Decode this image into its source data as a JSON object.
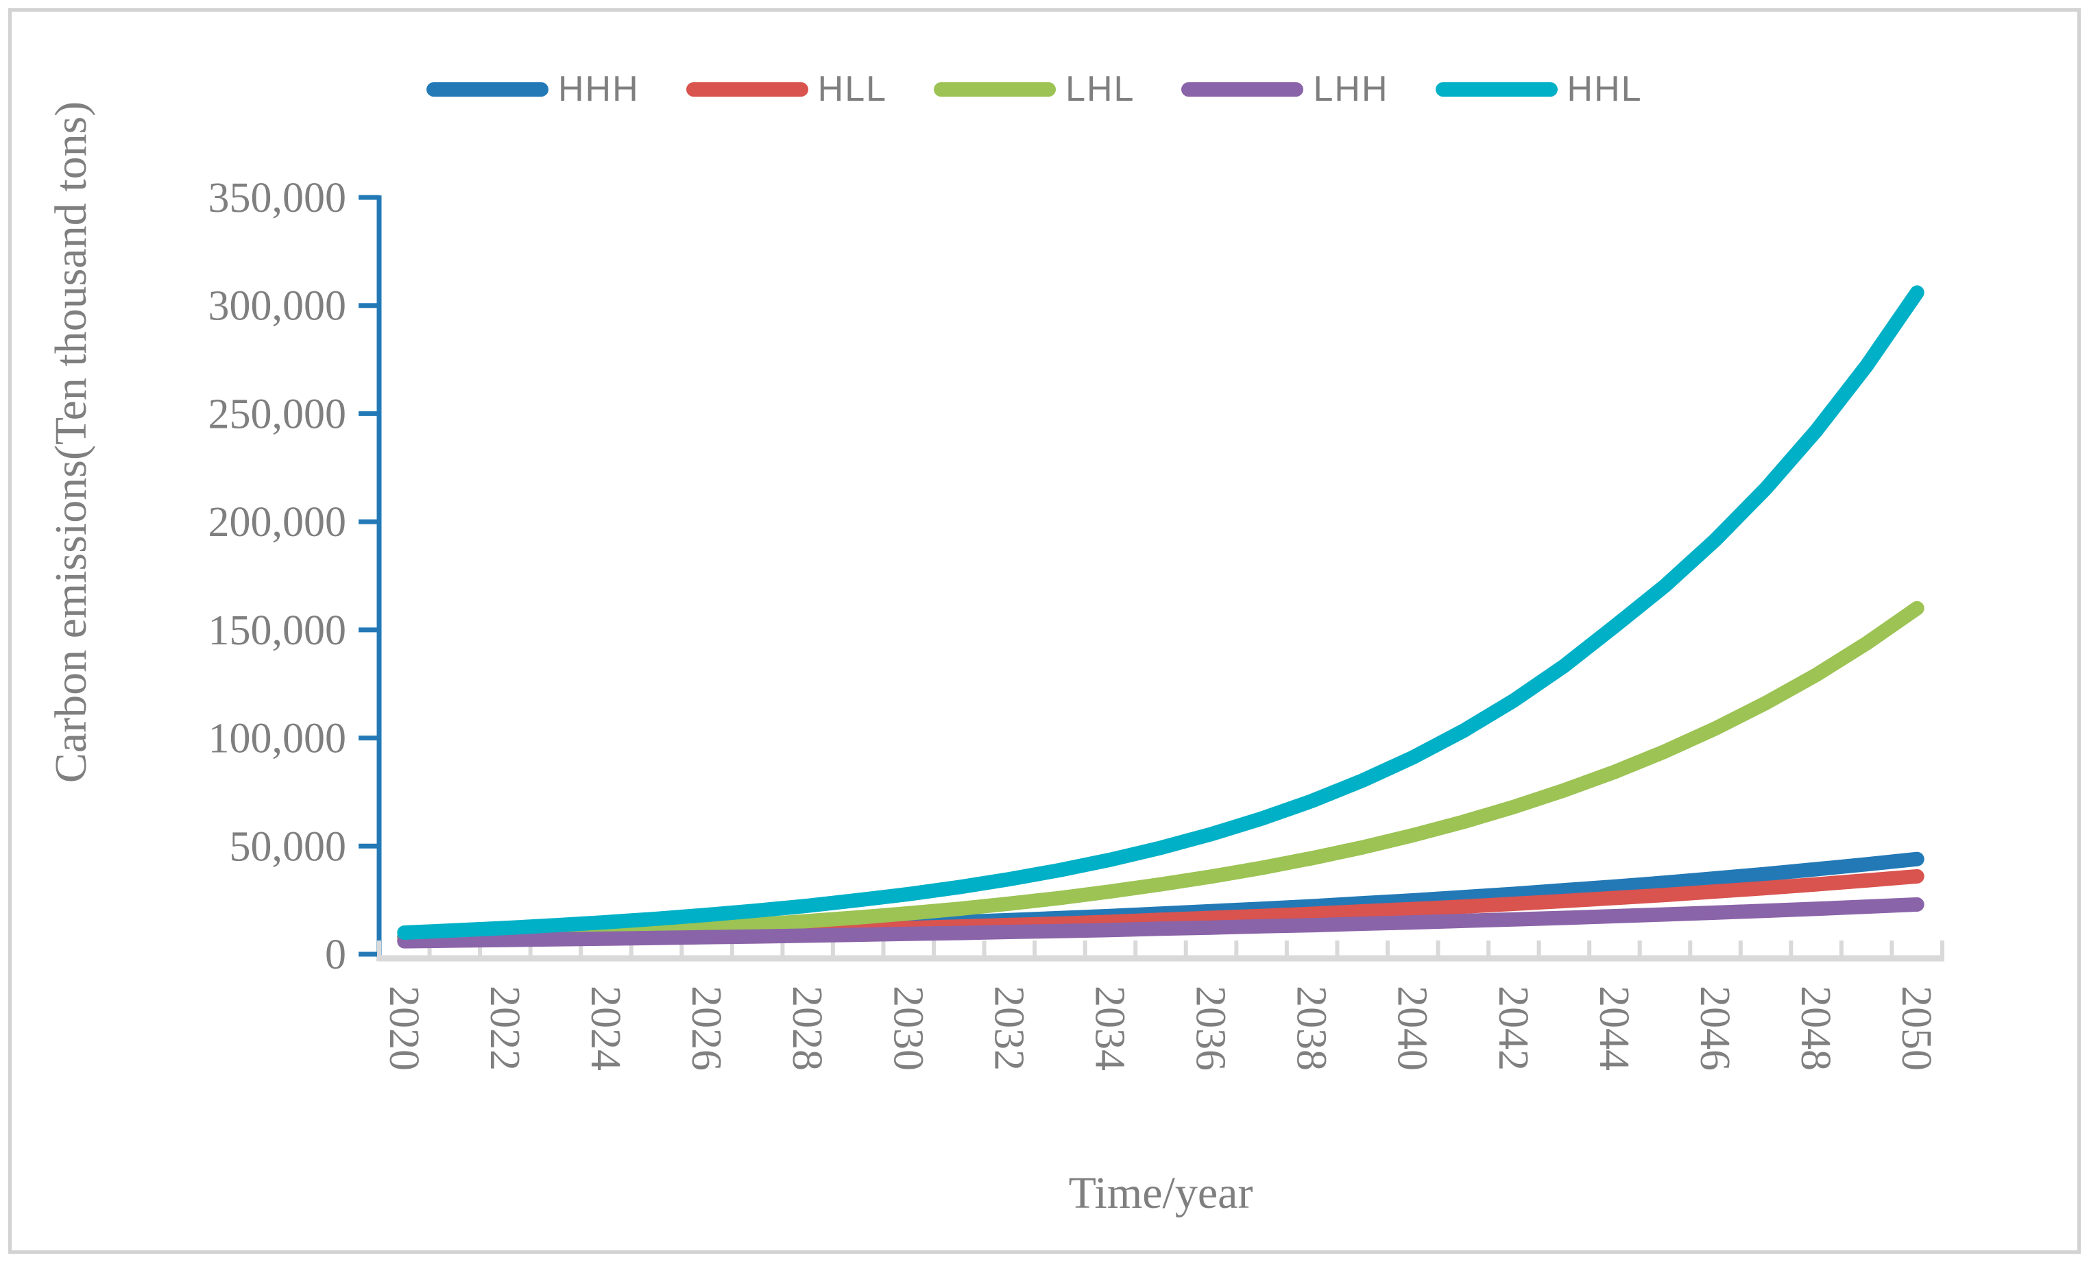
{
  "figure": {
    "background": "#FFFFFF",
    "border_color": "#D2D2D2"
  },
  "legend": {
    "position": "top",
    "text_color": "#7F7F7F",
    "items": [
      {
        "label": "HHH",
        "color": "#2379B6"
      },
      {
        "label": "HLL",
        "color": "#D9534F"
      },
      {
        "label": "LHL",
        "color": "#9CC353"
      },
      {
        "label": "LHH",
        "color": "#8A64A8"
      },
      {
        "label": "HHL",
        "color": "#00B0C6"
      }
    ]
  },
  "y_axis": {
    "title": "Carbon emissions(Ten thousand tons)",
    "tick_labels": [
      "0",
      "50,000",
      "100,000",
      "150,000",
      "200,000",
      "250,000",
      "300,000",
      "350,000"
    ],
    "min": 0,
    "max": 350000,
    "step": 50000,
    "axis_color": "#2379B6",
    "text_color": "#7F7F7F"
  },
  "x_axis": {
    "title": "Time/year",
    "tick_labels": [
      "2020",
      "2022",
      "2024",
      "2026",
      "2028",
      "2030",
      "2032",
      "2034",
      "2036",
      "2038",
      "2040",
      "2042",
      "2044",
      "2046",
      "2048",
      "2050"
    ],
    "line_color": "#D9D9D9",
    "text_color": "#7F7F7F"
  },
  "chart_data": {
    "type": "line",
    "title": "",
    "xlabel": "Time/year",
    "ylabel": "Carbon emissions(Ten thousand tons)",
    "ylim": [
      0,
      350000
    ],
    "grid": false,
    "legend_position": "top",
    "x": [
      2020,
      2021,
      2022,
      2023,
      2024,
      2025,
      2026,
      2027,
      2028,
      2029,
      2030,
      2031,
      2032,
      2033,
      2034,
      2035,
      2036,
      2037,
      2038,
      2039,
      2040,
      2041,
      2042,
      2043,
      2044,
      2045,
      2046,
      2047,
      2048,
      2049,
      2050
    ],
    "series": [
      {
        "name": "HHH",
        "color": "#2379B6",
        "values": [
          8000,
          8500,
          9000,
          9500,
          10000,
          10600,
          11300,
          11900,
          12600,
          13300,
          14100,
          14900,
          15800,
          16700,
          17700,
          18800,
          19900,
          21000,
          22200,
          23600,
          24900,
          26400,
          27900,
          29600,
          31300,
          33100,
          35100,
          37100,
          39300,
          41600,
          44000
        ]
      },
      {
        "name": "HLL",
        "color": "#D9534F",
        "values": [
          7000,
          7400,
          7800,
          8200,
          8700,
          9200,
          9700,
          10300,
          10800,
          11400,
          12100,
          12800,
          13500,
          14200,
          15000,
          15900,
          16800,
          17700,
          18700,
          19800,
          20900,
          22000,
          23300,
          24600,
          26000,
          27400,
          29000,
          30600,
          32300,
          34100,
          36000
        ]
      },
      {
        "name": "LHL",
        "color": "#9CC353",
        "values": [
          6500,
          7200,
          8000,
          9000,
          10000,
          11100,
          12300,
          13700,
          15300,
          17000,
          18900,
          21000,
          23400,
          26000,
          29000,
          32300,
          35900,
          39900,
          44400,
          49400,
          55000,
          61200,
          68100,
          75800,
          84300,
          93800,
          104400,
          116200,
          129200,
          143800,
          160000
        ]
      },
      {
        "name": "LHH",
        "color": "#8A64A8",
        "values": [
          6000,
          6300,
          6600,
          6900,
          7200,
          7500,
          7900,
          8200,
          8600,
          9000,
          9400,
          9800,
          10300,
          10700,
          11200,
          11800,
          12300,
          12900,
          13400,
          14100,
          14700,
          15400,
          16100,
          16800,
          17600,
          18400,
          19200,
          20100,
          21000,
          22000,
          23000
        ]
      },
      {
        "name": "HHL",
        "color": "#00B0C6",
        "values": [
          10000,
          11000,
          12100,
          13400,
          14800,
          16400,
          18200,
          20200,
          22400,
          25000,
          27800,
          31000,
          34700,
          38900,
          43700,
          49200,
          55500,
          62700,
          70900,
          80300,
          91000,
          103300,
          117300,
          133300,
          151600,
          170400,
          191600,
          215400,
          242100,
          272200,
          306000
        ]
      }
    ]
  }
}
